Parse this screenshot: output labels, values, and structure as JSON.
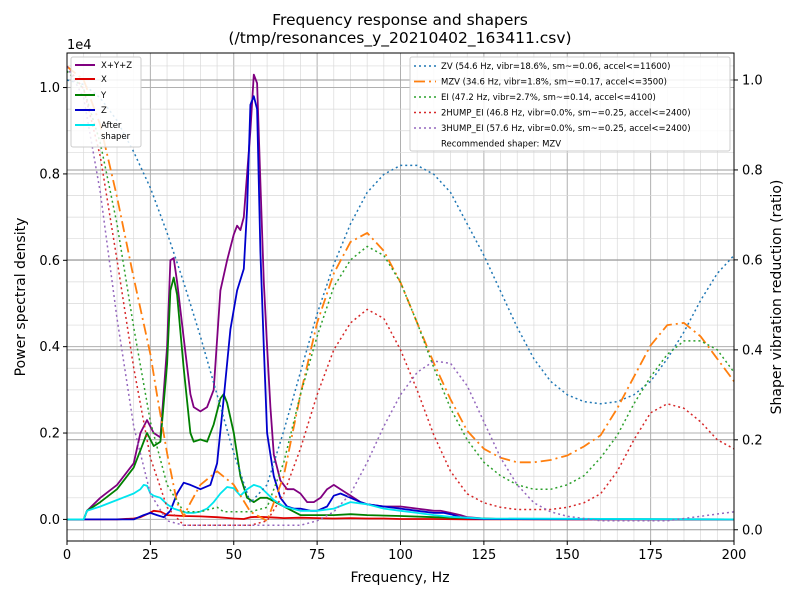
{
  "chart_data": {
    "type": "line",
    "title": "Frequency response and shapers",
    "subtitle": "(/tmp/resonances_y_20210402_163411.csv)",
    "xlabel": "Frequency, Hz",
    "ylabel": "Power spectral density",
    "y2label": "Shaper vibration reduction (ratio)",
    "y_multiplier": "1e4",
    "xlim": [
      0,
      200
    ],
    "ylim": [
      -0.05,
      1.08
    ],
    "y2lim": [
      -0.025,
      1.06
    ],
    "xticks": [
      0,
      25,
      50,
      75,
      100,
      125,
      150,
      175,
      200
    ],
    "yticks": [
      0.0,
      0.2,
      0.4,
      0.6,
      0.8,
      1.0
    ],
    "yticklabels": [
      "0.0",
      "0.2",
      "0.4",
      "0.6",
      "0.8",
      "1.0"
    ],
    "y2ticks": [
      0.0,
      0.2,
      0.4,
      0.6,
      0.8,
      1.0
    ],
    "y2ticklabels": [
      "0.0",
      "0.2",
      "0.4",
      "0.6",
      "0.8",
      "1.0"
    ],
    "grid": true,
    "legend_left": {
      "placement": "top-left",
      "entries": [
        "X+Y+Z",
        "X",
        "Y",
        "Z",
        "After\nshaper"
      ]
    },
    "legend_right": {
      "placement": "top-right",
      "entries": [
        "ZV (54.6 Hz, vibr=18.6%, sm~=0.06, accel<=11600)",
        "MZV (34.6 Hz, vibr=1.8%, sm~=0.17, accel<=3500)",
        "EI (47.2 Hz, vibr=2.7%, sm~=0.14, accel<=4100)",
        "2HUMP_EI (46.8 Hz, vibr=0.0%, sm~=0.25, accel<=2400)",
        "3HUMP_EI (57.6 Hz, vibr=0.0%, sm~=0.25, accel<=2400)"
      ],
      "note": "Recommended shaper: MZV"
    },
    "psd_series": [
      {
        "name": "X+Y+Z",
        "color": "#800080",
        "width": 1.8,
        "x": [
          0,
          5,
          6,
          10,
          15,
          20,
          22,
          24,
          26,
          28,
          30,
          31,
          32,
          33,
          35,
          37,
          38,
          40,
          42,
          44,
          46,
          48,
          50,
          51,
          52,
          53,
          54,
          55,
          56,
          57,
          58,
          59,
          60,
          61,
          62,
          64,
          66,
          68,
          70,
          72,
          74,
          76,
          78,
          80,
          82,
          84,
          86,
          88,
          90,
          95,
          100,
          105,
          110,
          112,
          115,
          118,
          120,
          125,
          130,
          150,
          200
        ],
        "y": [
          0,
          0,
          0.02,
          0.05,
          0.08,
          0.13,
          0.2,
          0.23,
          0.2,
          0.19,
          0.4,
          0.6,
          0.605,
          0.55,
          0.42,
          0.29,
          0.26,
          0.25,
          0.26,
          0.3,
          0.53,
          0.6,
          0.66,
          0.68,
          0.67,
          0.7,
          0.8,
          0.9,
          1.03,
          1.01,
          0.78,
          0.55,
          0.4,
          0.26,
          0.15,
          0.09,
          0.07,
          0.07,
          0.06,
          0.04,
          0.04,
          0.05,
          0.07,
          0.08,
          0.07,
          0.06,
          0.05,
          0.04,
          0.035,
          0.03,
          0.03,
          0.025,
          0.02,
          0.02,
          0.015,
          0.01,
          0.005,
          0.002,
          0.001,
          0,
          0
        ]
      },
      {
        "name": "X",
        "color": "#dd0000",
        "width": 1.8,
        "x": [
          0,
          5,
          15,
          20,
          22,
          24,
          26,
          28,
          30,
          35,
          40,
          45,
          50,
          53,
          55,
          57,
          60,
          63,
          65,
          70,
          75,
          80,
          85,
          90,
          95,
          100,
          110,
          120,
          130,
          200
        ],
        "y": [
          0,
          0,
          0,
          0.002,
          0.005,
          0.012,
          0.02,
          0.018,
          0.01,
          0.008,
          0.007,
          0.005,
          0.002,
          0.001,
          0.005,
          0.006,
          0.005,
          0.004,
          0.003,
          0.004,
          0.003,
          0.002,
          0.003,
          0.002,
          0.002,
          0.001,
          0.001,
          0,
          0,
          0
        ]
      },
      {
        "name": "Y",
        "color": "#008000",
        "width": 1.8,
        "x": [
          0,
          5,
          6,
          8,
          10,
          15,
          20,
          22,
          24,
          26,
          28,
          30,
          31,
          32,
          33,
          35,
          37,
          38,
          40,
          42,
          44,
          46,
          47,
          48,
          50,
          52,
          54,
          56,
          58,
          60,
          65,
          70,
          75,
          80,
          85,
          90,
          100,
          110,
          120,
          130,
          200
        ],
        "y": [
          0,
          0,
          0.02,
          0.03,
          0.04,
          0.07,
          0.12,
          0.16,
          0.2,
          0.17,
          0.18,
          0.36,
          0.53,
          0.56,
          0.52,
          0.35,
          0.2,
          0.18,
          0.185,
          0.18,
          0.22,
          0.28,
          0.29,
          0.27,
          0.2,
          0.1,
          0.05,
          0.04,
          0.05,
          0.05,
          0.03,
          0.01,
          0.01,
          0.01,
          0.012,
          0.01,
          0.008,
          0.005,
          0.003,
          0.001,
          0
        ]
      },
      {
        "name": "Z",
        "color": "#0000cc",
        "width": 1.8,
        "x": [
          0,
          5,
          20,
          23,
          25,
          27,
          29,
          31,
          33,
          35,
          37,
          40,
          43,
          45,
          47,
          49,
          51,
          53,
          54,
          55,
          56,
          57,
          58,
          59,
          60,
          62,
          64,
          66,
          68,
          70,
          73,
          75,
          78,
          80,
          82,
          85,
          88,
          90,
          95,
          100,
          105,
          110,
          113,
          115,
          118,
          120,
          125,
          200
        ],
        "y": [
          0,
          0,
          0,
          0.01,
          0.015,
          0.01,
          0.005,
          0.02,
          0.06,
          0.085,
          0.08,
          0.07,
          0.08,
          0.13,
          0.28,
          0.44,
          0.53,
          0.58,
          0.72,
          0.96,
          0.98,
          0.95,
          0.62,
          0.4,
          0.2,
          0.1,
          0.05,
          0.03,
          0.025,
          0.025,
          0.02,
          0.02,
          0.03,
          0.055,
          0.06,
          0.05,
          0.04,
          0.035,
          0.03,
          0.025,
          0.02,
          0.015,
          0.015,
          0.012,
          0.005,
          0.003,
          0.001,
          0
        ]
      },
      {
        "name": "After\nshaper",
        "color": "#00e5ee",
        "width": 1.8,
        "x": [
          0,
          5,
          6,
          10,
          15,
          20,
          22,
          23,
          24,
          25,
          26,
          28,
          30,
          32,
          34,
          36,
          38,
          40,
          42,
          44,
          46,
          48,
          50,
          52,
          54,
          56,
          58,
          60,
          62,
          65,
          70,
          75,
          80,
          85,
          90,
          95,
          100,
          105,
          110,
          115,
          120,
          125,
          200
        ],
        "y": [
          0,
          0,
          0.02,
          0.03,
          0.045,
          0.06,
          0.07,
          0.08,
          0.078,
          0.06,
          0.055,
          0.05,
          0.035,
          0.025,
          0.02,
          0.015,
          0.015,
          0.018,
          0.025,
          0.04,
          0.06,
          0.075,
          0.072,
          0.055,
          0.07,
          0.08,
          0.075,
          0.06,
          0.045,
          0.03,
          0.02,
          0.02,
          0.025,
          0.04,
          0.035,
          0.025,
          0.02,
          0.015,
          0.01,
          0.006,
          0.004,
          0.002,
          0
        ]
      }
    ],
    "shaper_series": [
      {
        "name": "ZV",
        "color": "#1f77b4",
        "dash": "2,3",
        "width": 1.5,
        "x": [
          0,
          5,
          10,
          15,
          20,
          25,
          30,
          35,
          40,
          45,
          50,
          55,
          60,
          65,
          70,
          75,
          80,
          85,
          90,
          95,
          100,
          105,
          110,
          115,
          120,
          125,
          130,
          135,
          140,
          145,
          150,
          155,
          160,
          165,
          170,
          175,
          180,
          185,
          190,
          195,
          200
        ],
        "y": [
          1.0,
          0.99,
          0.96,
          0.91,
          0.84,
          0.76,
          0.66,
          0.55,
          0.43,
          0.3,
          0.17,
          0.06,
          0.1,
          0.22,
          0.35,
          0.48,
          0.59,
          0.68,
          0.75,
          0.79,
          0.81,
          0.81,
          0.79,
          0.75,
          0.68,
          0.61,
          0.53,
          0.45,
          0.38,
          0.33,
          0.3,
          0.285,
          0.28,
          0.285,
          0.3,
          0.33,
          0.38,
          0.44,
          0.51,
          0.57,
          0.61
        ]
      },
      {
        "name": "MZV",
        "color": "#ff7f0e",
        "dash": "11,4,2,4",
        "width": 1.8,
        "x": [
          0,
          5,
          10,
          15,
          20,
          25,
          27,
          30,
          33,
          35,
          37,
          40,
          45,
          50,
          55,
          60,
          65,
          70,
          75,
          80,
          85,
          90,
          95,
          100,
          105,
          110,
          115,
          120,
          125,
          130,
          135,
          140,
          145,
          150,
          155,
          160,
          165,
          170,
          175,
          180,
          185,
          190,
          195,
          200
        ],
        "y": [
          1.03,
          1.0,
          0.9,
          0.74,
          0.56,
          0.39,
          0.3,
          0.17,
          0.06,
          0.03,
          0.06,
          0.1,
          0.13,
          0.1,
          0.04,
          0.02,
          0.12,
          0.3,
          0.46,
          0.57,
          0.64,
          0.66,
          0.62,
          0.55,
          0.46,
          0.37,
          0.29,
          0.22,
          0.18,
          0.16,
          0.15,
          0.15,
          0.155,
          0.165,
          0.185,
          0.21,
          0.27,
          0.34,
          0.41,
          0.455,
          0.46,
          0.43,
          0.38,
          0.33
        ]
      },
      {
        "name": "EI",
        "color": "#2ca02c",
        "dash": "2,3",
        "width": 1.5,
        "x": [
          0,
          5,
          10,
          15,
          20,
          25,
          30,
          35,
          40,
          45,
          47,
          50,
          55,
          60,
          65,
          70,
          75,
          80,
          85,
          90,
          95,
          100,
          105,
          110,
          115,
          120,
          125,
          130,
          135,
          140,
          145,
          150,
          155,
          160,
          165,
          170,
          175,
          180,
          185,
          190,
          195,
          200
        ],
        "y": [
          1.02,
          0.98,
          0.86,
          0.68,
          0.45,
          0.24,
          0.1,
          0.04,
          0.04,
          0.05,
          0.04,
          0.04,
          0.04,
          0.05,
          0.15,
          0.3,
          0.43,
          0.54,
          0.6,
          0.63,
          0.61,
          0.55,
          0.46,
          0.36,
          0.27,
          0.2,
          0.15,
          0.12,
          0.1,
          0.09,
          0.09,
          0.1,
          0.12,
          0.16,
          0.21,
          0.28,
          0.34,
          0.39,
          0.42,
          0.42,
          0.4,
          0.35
        ]
      },
      {
        "name": "2HUMP_EI",
        "color": "#d62728",
        "dash": "2,3",
        "width": 1.5,
        "x": [
          0,
          5,
          10,
          15,
          20,
          25,
          30,
          35,
          40,
          45,
          50,
          55,
          60,
          65,
          70,
          75,
          80,
          85,
          90,
          95,
          100,
          105,
          110,
          115,
          120,
          125,
          130,
          135,
          140,
          145,
          150,
          155,
          160,
          165,
          170,
          175,
          180,
          185,
          190,
          195,
          200
        ],
        "y": [
          1.03,
          0.98,
          0.83,
          0.6,
          0.36,
          0.16,
          0.05,
          0.01,
          0.01,
          0.01,
          0.01,
          0.01,
          0.02,
          0.08,
          0.18,
          0.3,
          0.4,
          0.46,
          0.49,
          0.47,
          0.4,
          0.31,
          0.21,
          0.13,
          0.08,
          0.06,
          0.05,
          0.045,
          0.045,
          0.045,
          0.05,
          0.06,
          0.08,
          0.13,
          0.2,
          0.26,
          0.28,
          0.27,
          0.24,
          0.2,
          0.18
        ]
      },
      {
        "name": "3HUMP_EI",
        "color": "#9467bd",
        "dash": "2,3",
        "width": 1.5,
        "x": [
          0,
          5,
          10,
          15,
          20,
          25,
          30,
          35,
          40,
          45,
          50,
          55,
          60,
          65,
          70,
          75,
          80,
          85,
          90,
          95,
          100,
          105,
          110,
          115,
          120,
          125,
          130,
          135,
          140,
          145,
          150,
          155,
          160,
          165,
          170,
          175,
          180,
          185,
          190,
          195,
          200
        ],
        "y": [
          1.03,
          0.96,
          0.75,
          0.47,
          0.23,
          0.08,
          0.02,
          0.01,
          0.01,
          0.01,
          0.01,
          0.01,
          0.01,
          0.01,
          0.01,
          0.02,
          0.04,
          0.08,
          0.15,
          0.23,
          0.3,
          0.35,
          0.375,
          0.37,
          0.32,
          0.24,
          0.16,
          0.1,
          0.06,
          0.04,
          0.03,
          0.025,
          0.02,
          0.02,
          0.02,
          0.02,
          0.02,
          0.025,
          0.03,
          0.035,
          0.04
        ]
      }
    ]
  }
}
